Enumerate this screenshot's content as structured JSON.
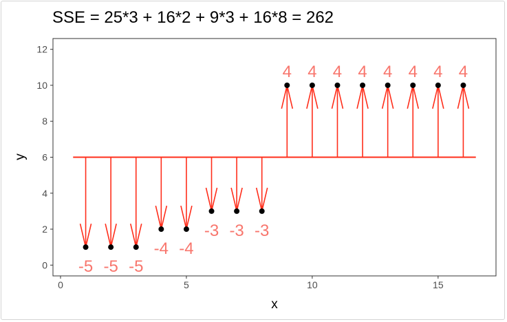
{
  "chart_data": {
    "type": "scatter",
    "title": "SSE = 25*3 + 16*2 + 9*3 + 16*8 = 262",
    "xlabel": "x",
    "ylabel": "y",
    "xlim": [
      -0.3,
      17.3
    ],
    "ylim": [
      -0.6,
      12.6
    ],
    "xticks": [
      0,
      5,
      10,
      15
    ],
    "yticks": [
      0,
      2,
      4,
      6,
      8,
      10,
      12
    ],
    "grid": false,
    "mean_line": {
      "y": 6,
      "x_start": 0.5,
      "x_end": 16.5,
      "color": "#ff2d1a"
    },
    "points": [
      {
        "x": 1,
        "y": 1,
        "residual": "-5"
      },
      {
        "x": 2,
        "y": 1,
        "residual": "-5"
      },
      {
        "x": 3,
        "y": 1,
        "residual": "-5"
      },
      {
        "x": 4,
        "y": 2,
        "residual": "-4"
      },
      {
        "x": 5,
        "y": 2,
        "residual": "-4"
      },
      {
        "x": 6,
        "y": 3,
        "residual": "-3"
      },
      {
        "x": 7,
        "y": 3,
        "residual": "-3"
      },
      {
        "x": 8,
        "y": 3,
        "residual": "-3"
      },
      {
        "x": 9,
        "y": 10,
        "residual": "4"
      },
      {
        "x": 10,
        "y": 10,
        "residual": "4"
      },
      {
        "x": 11,
        "y": 10,
        "residual": "4"
      },
      {
        "x": 12,
        "y": 10,
        "residual": "4"
      },
      {
        "x": 13,
        "y": 10,
        "residual": "4"
      },
      {
        "x": 14,
        "y": 10,
        "residual": "4"
      },
      {
        "x": 15,
        "y": 10,
        "residual": "4"
      },
      {
        "x": 16,
        "y": 10,
        "residual": "4"
      }
    ],
    "colors": {
      "arrow": "#ff2d1a",
      "label": "#f8766d",
      "point": "#000000"
    }
  }
}
